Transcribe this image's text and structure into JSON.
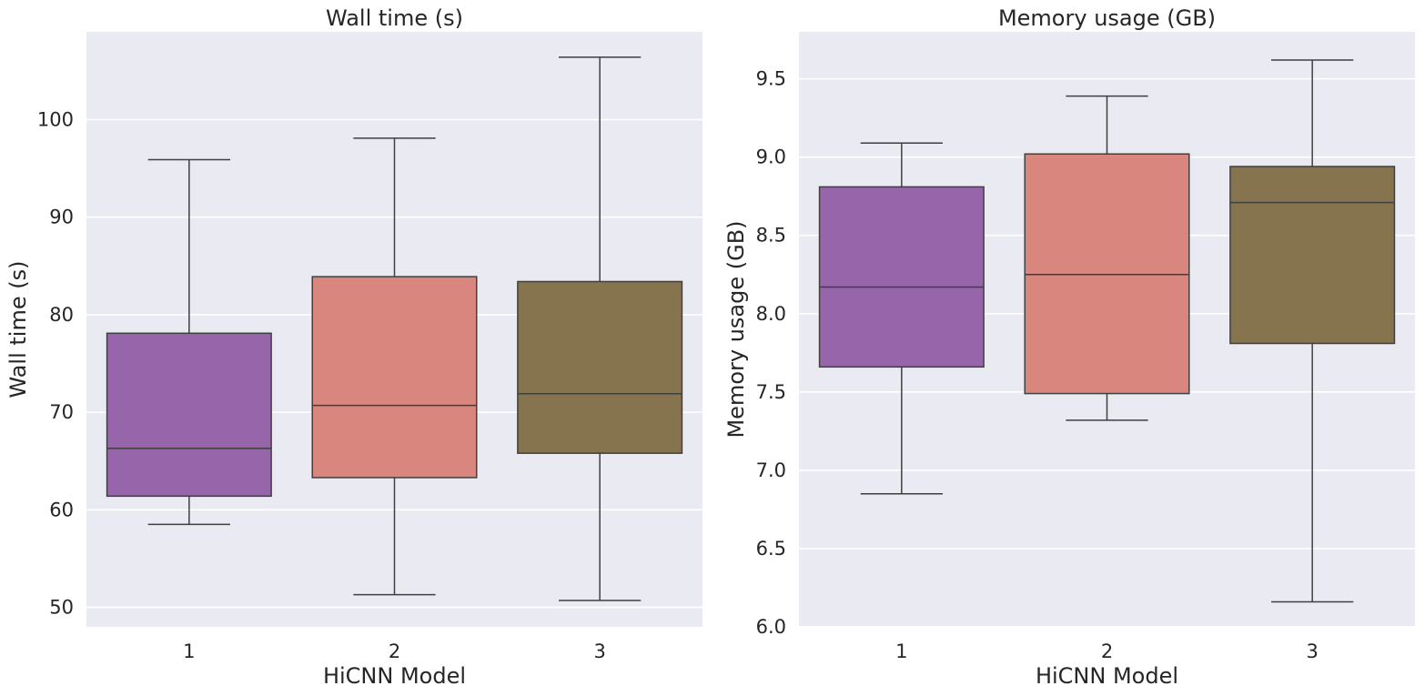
{
  "chart_data": [
    {
      "type": "box",
      "title": "Wall time (s)",
      "xlabel": "HiCNN Model",
      "ylabel": "Wall time (s)",
      "categories": [
        "1",
        "2",
        "3"
      ],
      "ylim": [
        48,
        109
      ],
      "yticks": [
        50,
        60,
        70,
        80,
        90,
        100
      ],
      "grid": true,
      "colors": [
        "#9765aa",
        "#d9877e",
        "#86744e"
      ],
      "boxes": [
        {
          "min": 58.5,
          "q1": 61.4,
          "median": 66.3,
          "q3": 78.1,
          "max": 95.9
        },
        {
          "min": 51.3,
          "q1": 63.3,
          "median": 70.7,
          "q3": 83.9,
          "max": 98.1
        },
        {
          "min": 50.7,
          "q1": 65.8,
          "median": 71.9,
          "q3": 83.4,
          "max": 106.4
        }
      ]
    },
    {
      "type": "box",
      "title": "Memory usage (GB)",
      "xlabel": "HiCNN Model",
      "ylabel": "Memory usage (GB)",
      "categories": [
        "1",
        "2",
        "3"
      ],
      "ylim": [
        6.0,
        9.8
      ],
      "yticks": [
        6.0,
        6.5,
        7.0,
        7.5,
        8.0,
        8.5,
        9.0,
        9.5
      ],
      "grid": true,
      "colors": [
        "#9765aa",
        "#d9877e",
        "#86744e"
      ],
      "boxes": [
        {
          "min": 6.85,
          "q1": 7.66,
          "median": 8.17,
          "q3": 8.81,
          "max": 9.09
        },
        {
          "min": 7.32,
          "q1": 7.49,
          "median": 8.25,
          "q3": 9.02,
          "max": 9.39
        },
        {
          "min": 6.16,
          "q1": 7.81,
          "median": 8.71,
          "q3": 8.94,
          "max": 9.62
        }
      ]
    }
  ]
}
